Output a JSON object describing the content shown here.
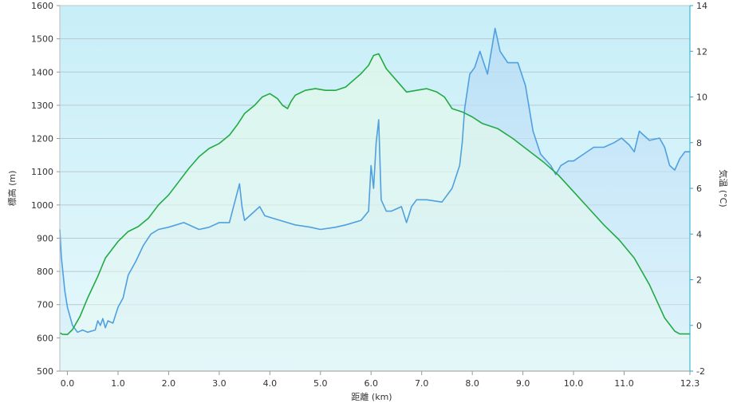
{
  "chart_data": {
    "type": "area",
    "xlabel": "距離 (km)",
    "ylabel_left": "標高 (m)",
    "ylabel_right": "気温 (°C)",
    "x_ticks": [
      "0.0",
      "1.0",
      "2.0",
      "3.0",
      "4.0",
      "5.0",
      "6.0",
      "7.0",
      "8.0",
      "9.0",
      "10.0",
      "11.0",
      "12.3"
    ],
    "y_left_ticks": [
      "500",
      "600",
      "700",
      "800",
      "900",
      "1000",
      "1100",
      "1200",
      "1300",
      "1400",
      "1500",
      "1600"
    ],
    "y_right_ticks": [
      "-2",
      "0",
      "2",
      "4",
      "6",
      "8",
      "10",
      "12",
      "14"
    ],
    "xlim": [
      -0.15,
      12.3
    ],
    "ylim_left": [
      500,
      1600
    ],
    "ylim_right": [
      -2,
      14
    ],
    "grid": true,
    "colors": {
      "elevation_line": "#22aa44",
      "temperature_line": "#4ea0e0",
      "plot_top": "#c8eef8",
      "plot_bottom": "#e6f8fc"
    },
    "series": [
      {
        "axis": "left",
        "x": [
          -0.15,
          -0.1,
          0.0,
          0.1,
          0.25,
          0.4,
          0.6,
          0.75,
          0.9,
          1.0,
          1.2,
          1.4,
          1.6,
          1.8,
          2.0,
          2.2,
          2.4,
          2.6,
          2.8,
          3.0,
          3.2,
          3.35,
          3.5,
          3.7,
          3.85,
          4.0,
          4.15,
          4.25,
          4.35,
          4.42,
          4.5,
          4.7,
          4.9,
          5.1,
          5.3,
          5.5,
          5.65,
          5.8,
          5.95,
          6.05,
          6.15,
          6.3,
          6.5,
          6.7,
          6.9,
          7.1,
          7.3,
          7.45,
          7.6,
          7.8,
          8.0,
          8.2,
          8.5,
          8.8,
          9.1,
          9.4,
          9.7,
          10.0,
          10.3,
          10.6,
          10.9,
          11.2,
          11.5,
          11.8,
          12.0,
          12.1,
          12.3
        ],
        "values": [
          615,
          611,
          610,
          625,
          665,
          720,
          785,
          840,
          870,
          890,
          920,
          935,
          960,
          1000,
          1030,
          1070,
          1110,
          1145,
          1170,
          1185,
          1210,
          1240,
          1275,
          1300,
          1325,
          1335,
          1320,
          1300,
          1290,
          1312,
          1330,
          1345,
          1350,
          1345,
          1345,
          1355,
          1375,
          1395,
          1420,
          1450,
          1455,
          1410,
          1375,
          1340,
          1345,
          1350,
          1340,
          1325,
          1290,
          1280,
          1265,
          1245,
          1230,
          1200,
          1165,
          1130,
          1090,
          1040,
          990,
          940,
          895,
          840,
          760,
          660,
          620,
          612,
          612
        ]
      },
      {
        "axis": "right",
        "x": [
          -0.15,
          -0.12,
          -0.05,
          0.0,
          0.1,
          0.2,
          0.3,
          0.4,
          0.55,
          0.6,
          0.65,
          0.7,
          0.75,
          0.8,
          0.9,
          1.0,
          1.1,
          1.2,
          1.35,
          1.5,
          1.65,
          1.8,
          2.0,
          2.3,
          2.6,
          2.8,
          3.0,
          3.2,
          3.4,
          3.45,
          3.5,
          3.7,
          3.8,
          3.9,
          4.2,
          4.5,
          4.8,
          5.0,
          5.3,
          5.5,
          5.8,
          5.95,
          6.0,
          6.05,
          6.1,
          6.15,
          6.2,
          6.3,
          6.4,
          6.6,
          6.7,
          6.8,
          6.9,
          7.1,
          7.4,
          7.6,
          7.75,
          7.8,
          7.85,
          7.95,
          8.05,
          8.15,
          8.3,
          8.45,
          8.55,
          8.7,
          8.9,
          9.05,
          9.2,
          9.35,
          9.55,
          9.65,
          9.75,
          9.9,
          10.0,
          10.2,
          10.4,
          10.6,
          10.8,
          10.95,
          11.1,
          11.2,
          11.3,
          11.5,
          11.7,
          11.8,
          11.9,
          12.0,
          12.1,
          12.2,
          12.3
        ],
        "values": [
          4.2,
          3.0,
          1.5,
          0.8,
          0.0,
          -0.3,
          -0.2,
          -0.3,
          -0.2,
          0.2,
          0.0,
          0.3,
          -0.1,
          0.2,
          0.1,
          0.8,
          1.2,
          2.2,
          2.8,
          3.5,
          4.0,
          4.2,
          4.3,
          4.5,
          4.2,
          4.3,
          4.5,
          4.5,
          6.2,
          5.2,
          4.6,
          5.0,
          5.2,
          4.8,
          4.6,
          4.4,
          4.3,
          4.2,
          4.3,
          4.4,
          4.6,
          5.0,
          7.0,
          6.0,
          8.0,
          9.0,
          5.5,
          5.0,
          5.0,
          5.2,
          4.5,
          5.2,
          5.5,
          5.5,
          5.4,
          6.0,
          7.0,
          8.0,
          9.5,
          11.0,
          11.3,
          12.0,
          11.0,
          13.0,
          12.0,
          11.5,
          11.5,
          10.5,
          8.5,
          7.5,
          7.0,
          6.6,
          7.0,
          7.2,
          7.2,
          7.5,
          7.8,
          7.8,
          8.0,
          8.2,
          7.9,
          7.6,
          8.5,
          8.1,
          8.2,
          7.8,
          7.0,
          6.8,
          7.3,
          7.6,
          7.6
        ]
      }
    ]
  }
}
